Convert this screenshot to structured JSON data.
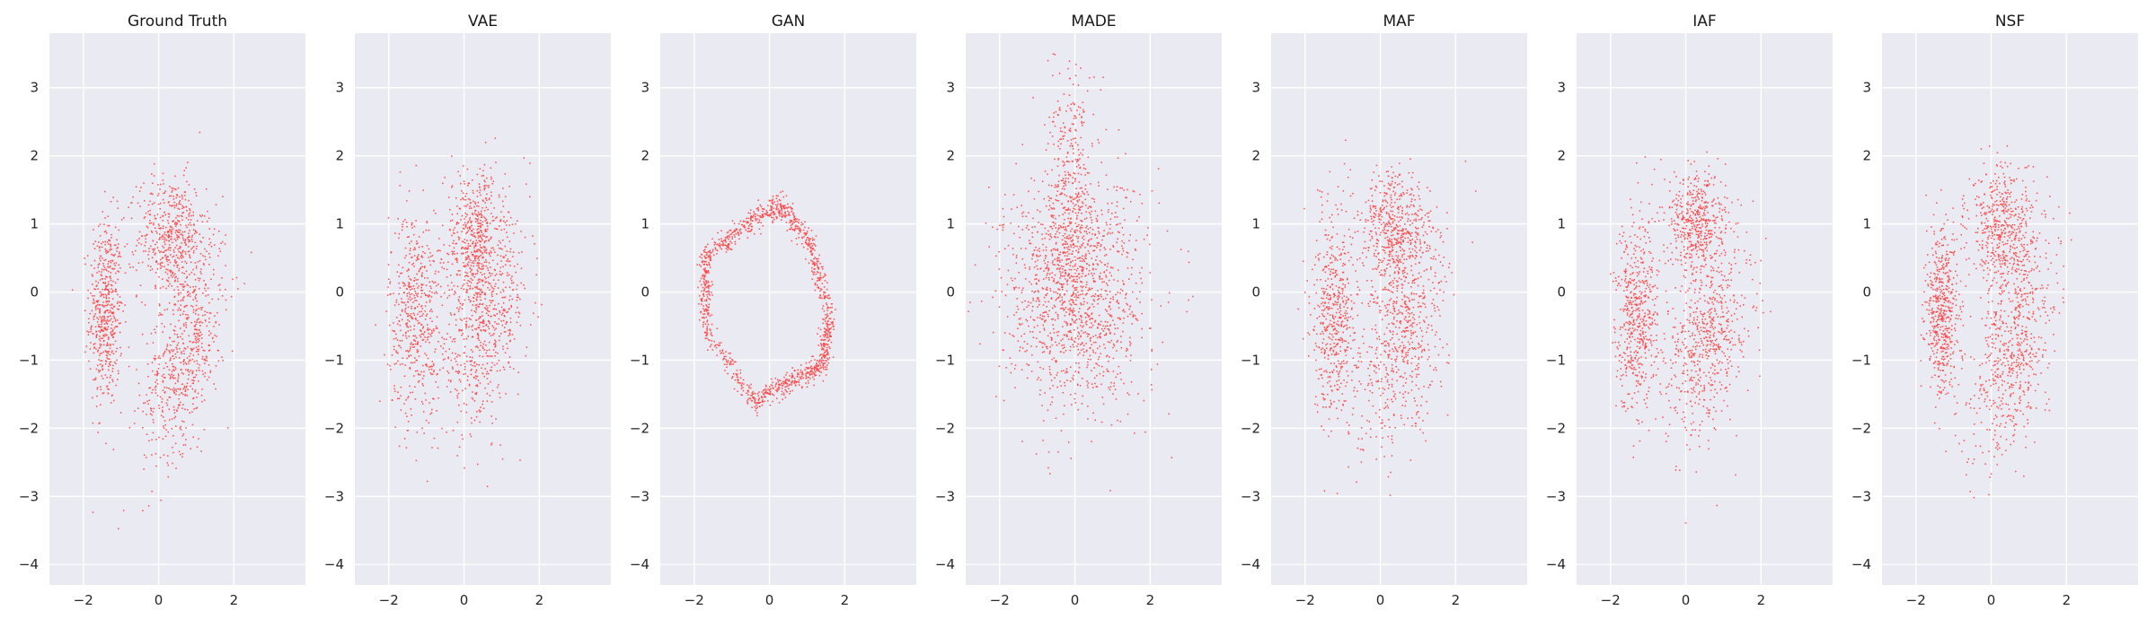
{
  "chart_data": [
    {
      "type": "scatter",
      "title": "Ground Truth",
      "xlim": [
        -2.9,
        3.9
      ],
      "ylim": [
        -4.3,
        3.8
      ],
      "xticks": [
        -2,
        0,
        2
      ],
      "yticks": [
        -4,
        -3,
        -2,
        -1,
        0,
        1,
        2,
        3
      ],
      "grid": true,
      "color": "#ff4a4a",
      "clusters": [
        {
          "cx": -1.4,
          "cy": -0.3,
          "sx": 0.22,
          "sy": 0.7,
          "rho": 0.0,
          "n": 520
        },
        {
          "cx": 0.35,
          "cy": 0.8,
          "sx": 0.45,
          "sy": 0.45,
          "rho": 0.0,
          "n": 520
        },
        {
          "cx": 0.7,
          "cy": -0.9,
          "sx": 0.55,
          "sy": 0.75,
          "rho": 0.5,
          "n": 620
        }
      ]
    },
    {
      "type": "scatter",
      "title": "VAE",
      "xlim": [
        -2.9,
        3.9
      ],
      "ylim": [
        -4.3,
        3.8
      ],
      "xticks": [
        -2,
        0,
        2
      ],
      "yticks": [
        -4,
        -3,
        -2,
        -1,
        0,
        1,
        2,
        3
      ],
      "grid": true,
      "color": "#ff4a4a",
      "clusters": [
        {
          "cx": -1.3,
          "cy": -0.3,
          "sx": 0.35,
          "sy": 0.75,
          "rho": 0.0,
          "n": 500
        },
        {
          "cx": 0.3,
          "cy": 0.8,
          "sx": 0.4,
          "sy": 0.5,
          "rho": 0.0,
          "n": 480
        },
        {
          "cx": 0.5,
          "cy": -0.5,
          "sx": 0.6,
          "sy": 0.75,
          "rho": 0.35,
          "n": 640
        }
      ]
    },
    {
      "type": "scatter",
      "title": "GAN",
      "xlim": [
        -2.9,
        3.9
      ],
      "ylim": [
        -4.3,
        3.8
      ],
      "xticks": [
        -2,
        0,
        2
      ],
      "yticks": [
        -4,
        -3,
        -2,
        -1,
        0,
        1,
        2,
        3
      ],
      "grid": true,
      "color": "#ff4a4a",
      "ring": [
        [
          -1.7,
          -0.6
        ],
        [
          -1.7,
          0.5
        ],
        [
          -0.6,
          1.0
        ],
        [
          0.3,
          1.3
        ],
        [
          1.1,
          0.7
        ],
        [
          1.6,
          -0.4
        ],
        [
          1.4,
          -1.1
        ],
        [
          0.6,
          -1.3
        ],
        [
          -0.4,
          -1.6
        ],
        [
          -1.7,
          -0.6
        ]
      ],
      "ring_n": 1300
    },
    {
      "type": "scatter",
      "title": "MADE",
      "xlim": [
        -2.9,
        3.9
      ],
      "ylim": [
        -4.3,
        3.8
      ],
      "xticks": [
        -2,
        0,
        2
      ],
      "yticks": [
        -4,
        -3,
        -2,
        -1,
        0,
        1,
        2,
        3
      ],
      "grid": true,
      "color": "#ff4a4a",
      "clusters": [
        {
          "cx": 0.0,
          "cy": 0.0,
          "sx": 0.95,
          "sy": 0.85,
          "rho": 0.0,
          "n": 1300
        },
        {
          "cx": -0.1,
          "cy": 1.4,
          "sx": 0.3,
          "sy": 0.9,
          "rho": 0.0,
          "n": 380
        }
      ]
    },
    {
      "type": "scatter",
      "title": "MAF",
      "xlim": [
        -2.9,
        3.9
      ],
      "ylim": [
        -4.3,
        3.8
      ],
      "xticks": [
        -2,
        0,
        2
      ],
      "yticks": [
        -4,
        -3,
        -2,
        -1,
        0,
        1,
        2,
        3
      ],
      "grid": true,
      "color": "#ff4a4a",
      "clusters": [
        {
          "cx": -1.2,
          "cy": -0.3,
          "sx": 0.3,
          "sy": 0.8,
          "rho": 0.0,
          "n": 520
        },
        {
          "cx": 0.4,
          "cy": 0.9,
          "sx": 0.45,
          "sy": 0.45,
          "rho": 0.0,
          "n": 500
        },
        {
          "cx": 0.6,
          "cy": -0.7,
          "sx": 0.6,
          "sy": 0.8,
          "rho": 0.35,
          "n": 620
        }
      ]
    },
    {
      "type": "scatter",
      "title": "IAF",
      "xlim": [
        -2.9,
        3.9
      ],
      "ylim": [
        -4.3,
        3.8
      ],
      "xticks": [
        -2,
        0,
        2
      ],
      "yticks": [
        -4,
        -3,
        -2,
        -1,
        0,
        1,
        2,
        3
      ],
      "grid": true,
      "color": "#ff4a4a",
      "clusters": [
        {
          "cx": -1.3,
          "cy": -0.3,
          "sx": 0.28,
          "sy": 0.7,
          "rho": 0.0,
          "n": 520
        },
        {
          "cx": 0.3,
          "cy": 1.0,
          "sx": 0.4,
          "sy": 0.4,
          "rho": 0.0,
          "n": 500
        },
        {
          "cx": 0.6,
          "cy": -0.7,
          "sx": 0.55,
          "sy": 0.7,
          "rho": 0.4,
          "n": 600
        }
      ]
    },
    {
      "type": "scatter",
      "title": "NSF",
      "xlim": [
        -2.9,
        3.9
      ],
      "ylim": [
        -4.3,
        3.8
      ],
      "xticks": [
        -2,
        0,
        2
      ],
      "yticks": [
        -4,
        -3,
        -2,
        -1,
        0,
        1,
        2,
        3
      ],
      "grid": true,
      "color": "#ff4a4a",
      "clusters": [
        {
          "cx": -1.3,
          "cy": -0.3,
          "sx": 0.22,
          "sy": 0.6,
          "rho": 0.0,
          "n": 520
        },
        {
          "cx": 0.3,
          "cy": 0.9,
          "sx": 0.45,
          "sy": 0.45,
          "rho": 0.0,
          "n": 520
        },
        {
          "cx": 0.6,
          "cy": -0.8,
          "sx": 0.55,
          "sy": 0.8,
          "rho": 0.45,
          "n": 620
        }
      ]
    }
  ]
}
